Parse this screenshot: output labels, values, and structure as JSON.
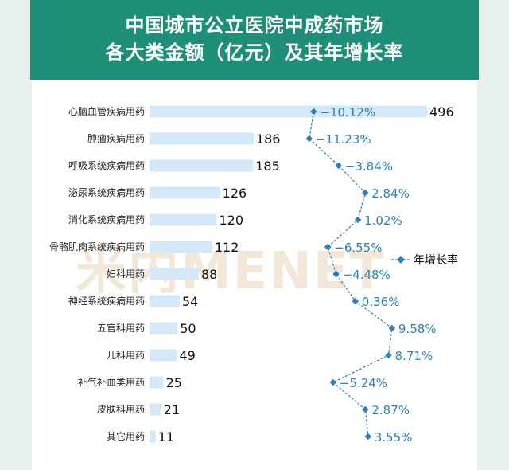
{
  "title": {
    "line1": "中国城市公立医院中成药市场",
    "line2": "各大类金额（亿元）及其年增长率"
  },
  "watermark": "米内MENET",
  "legend": {
    "growth_label": "年增长率"
  },
  "colors": {
    "title_band": "#1f8e78",
    "bar": "#d5e8f8",
    "line": "#2e7fb7",
    "rate_text": "#2e7fb7"
  },
  "chart_data": {
    "type": "bar",
    "orientation": "horizontal",
    "categories": [
      "心脑血管疾病用药",
      "肿瘤疾病用药",
      "呼吸系统疾病用药",
      "泌尿系统疾病用药",
      "消化系统疾病用药",
      "骨骼肌肉系统疾病用药",
      "妇科用药",
      "神经系统疾病用药",
      "五官科用药",
      "儿科用药",
      "补气补血类用药",
      "皮肤科用药",
      "其它用药"
    ],
    "series": [
      {
        "values": [
          496,
          186,
          185,
          126,
          120,
          112,
          88,
          54,
          50,
          49,
          25,
          21,
          11
        ]
      },
      {
        "name": "年增长率",
        "values": [
          -10.12,
          -11.23,
          -3.84,
          2.84,
          1.02,
          -6.55,
          -4.48,
          0.36,
          9.58,
          8.71,
          -5.24,
          2.87,
          3.55
        ]
      }
    ],
    "value_labels": [
      "496",
      "186",
      "185",
      "126",
      "120",
      "112",
      "88",
      "54",
      "50",
      "49",
      "25",
      "21",
      "11"
    ],
    "rate_labels": [
      "−10.12%",
      "−11.23%",
      "−3.84%",
      "2.84%",
      "1.02%",
      "−6.55%",
      "−4.48%",
      "0.36%",
      "9.58%",
      "8.71%",
      "−5.24%",
      "2.87%",
      "3.55%"
    ],
    "bar_xlim": [
      0,
      520
    ],
    "rate_xlim": [
      -14,
      14
    ],
    "legend_position": "right"
  }
}
